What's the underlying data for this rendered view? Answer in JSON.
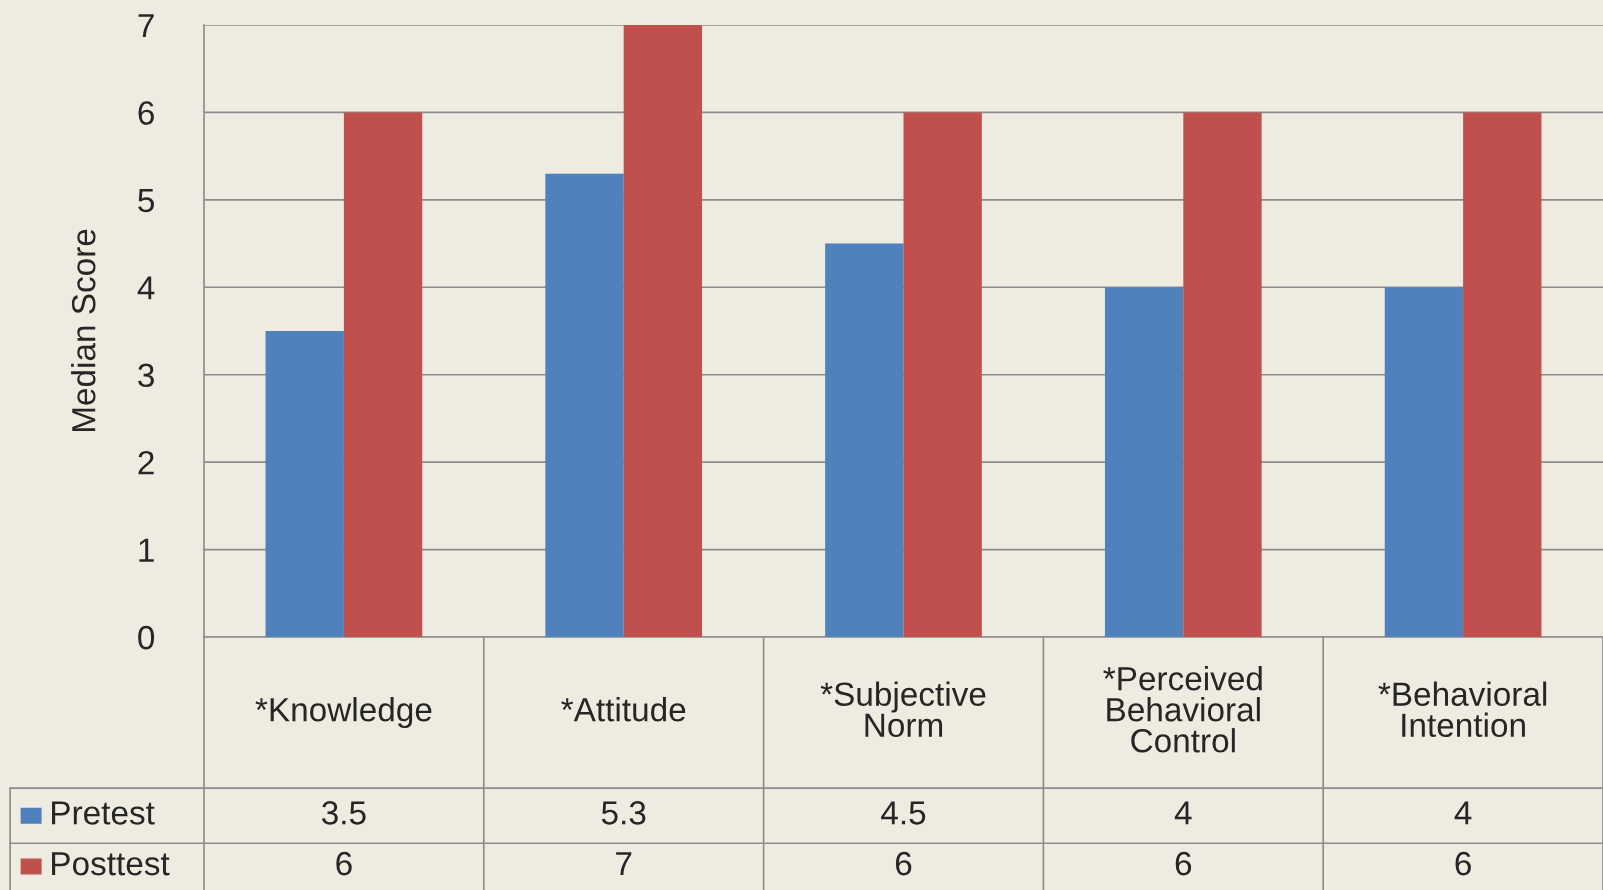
{
  "chart_data": {
    "type": "bar",
    "ylabel": "Median Score",
    "categories": [
      "*Knowledge",
      "*Attitude",
      "*Subjective Norm",
      "*Perceived Behavioral Control",
      "*Behavioral Intention"
    ],
    "series": [
      {
        "name": "Pretest",
        "color": "#4f81bd",
        "values": [
          3.5,
          5.3,
          4.5,
          4,
          4
        ]
      },
      {
        "name": "Posttest",
        "color": "#c0504d",
        "values": [
          6,
          7,
          6,
          6,
          6
        ]
      }
    ],
    "ylim": [
      0,
      7
    ],
    "yticks": [
      0,
      1,
      2,
      3,
      4,
      5,
      6,
      7
    ],
    "grid": "y",
    "legend": "bottom left",
    "data_labels": true
  }
}
